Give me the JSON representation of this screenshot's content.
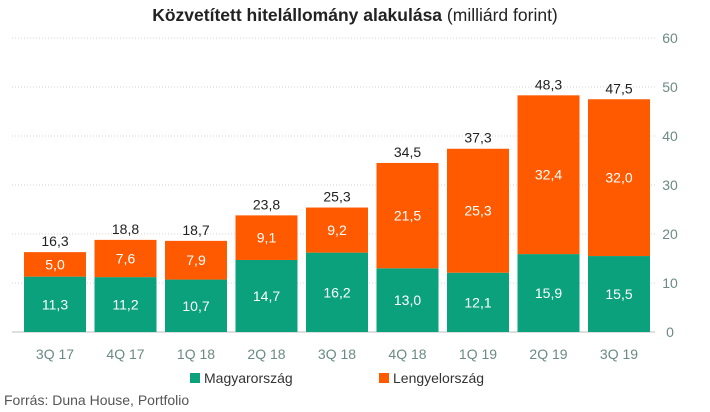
{
  "title": {
    "bold": "Közvetített hitelállomány alakulása",
    "unit": " (milliárd forint)"
  },
  "source": "Forrás: Duna House, Portfolio",
  "colors": {
    "series_1": "#0aa17c",
    "series_2": "#ff5a00",
    "axis_text": "#6b8a84",
    "grid": "#d6d6d6"
  },
  "chart_data": {
    "type": "bar",
    "stacked": true,
    "title": "Közvetített hitelállomány alakulása (milliárd forint)",
    "categories": [
      "3Q 17",
      "4Q 17",
      "1Q 18",
      "2Q 18",
      "3Q 18",
      "4Q 18",
      "1Q 19",
      "2Q 19",
      "3Q 19"
    ],
    "series": [
      {
        "name": "Magyarország",
        "values": [
          11.3,
          11.2,
          10.7,
          14.7,
          16.2,
          13.0,
          12.1,
          15.9,
          15.5
        ],
        "labels": [
          "11,3",
          "11,2",
          "10,7",
          "14,7",
          "16,2",
          "13,0",
          "12,1",
          "15,9",
          "15,5"
        ]
      },
      {
        "name": "Lengyelország",
        "values": [
          5.0,
          7.6,
          7.9,
          9.1,
          9.2,
          21.5,
          25.3,
          32.4,
          32.0
        ],
        "labels": [
          "5,0",
          "7,6",
          "7,9",
          "9,1",
          "9,2",
          "21,5",
          "25,3",
          "32,4",
          "32,0"
        ]
      }
    ],
    "totals": [
      16.3,
      18.8,
      18.7,
      23.8,
      25.3,
      34.5,
      37.3,
      48.3,
      47.5
    ],
    "total_labels": [
      "16,3",
      "18,8",
      "18,7",
      "23,8",
      "25,3",
      "34,5",
      "37,3",
      "48,3",
      "47,5"
    ],
    "ylim": [
      0,
      60
    ],
    "yticks": [
      0,
      10,
      20,
      30,
      40,
      50,
      60
    ],
    "y_axis_side": "right",
    "grid": true,
    "legend_position": "bottom"
  }
}
